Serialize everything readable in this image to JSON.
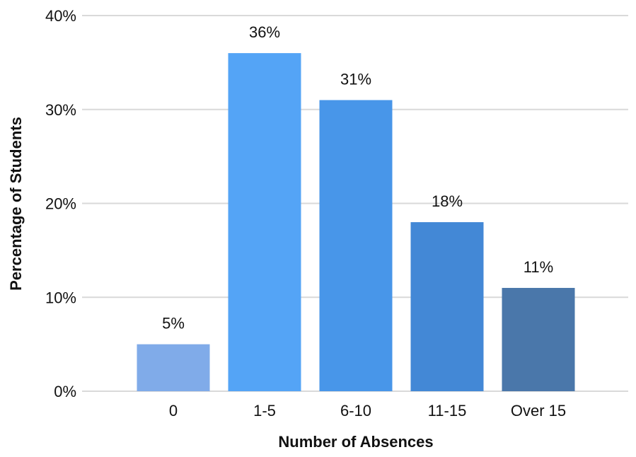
{
  "chart_data": {
    "type": "bar",
    "categories": [
      "0",
      "1-5",
      "6-10",
      "11-15",
      "Over 15"
    ],
    "values": [
      5,
      36,
      31,
      18,
      11
    ],
    "data_labels": [
      "5%",
      "36%",
      "31%",
      "18%",
      "11%"
    ],
    "bar_colors": [
      "#80abe9",
      "#54a4f6",
      "#4896e9",
      "#4388d6",
      "#4a77aa"
    ],
    "title": "",
    "xlabel": "Number of Absences",
    "ylabel": "Percentage of Students",
    "ylim": [
      0,
      40
    ],
    "yticks": [
      0,
      10,
      20,
      30,
      40
    ],
    "ytick_labels": [
      "0%",
      "10%",
      "20%",
      "30%",
      "40%"
    ],
    "grid": true,
    "legend": "none"
  }
}
